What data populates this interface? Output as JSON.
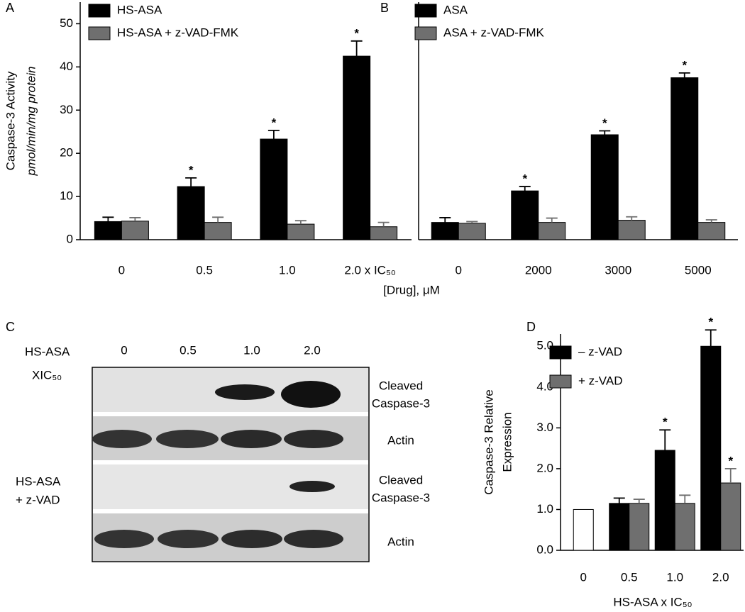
{
  "chart_data": [
    {
      "type": "bar",
      "panel": "A",
      "ylabel": [
        "Caspase-3 Activity",
        "pmol/min/mg protein"
      ],
      "xlabel": "[Drug], μM",
      "categories": [
        "0",
        "0.5",
        "1.0",
        "2.0 x IC₅₀"
      ],
      "ylim": [
        0,
        55
      ],
      "yticks": [
        0,
        10,
        20,
        30,
        40,
        50
      ],
      "series": [
        {
          "name": "HS-ASA",
          "color": "#000000",
          "values": [
            4.2,
            12.3,
            23.3,
            42.5
          ],
          "errors": [
            1.0,
            2.0,
            2.0,
            3.5
          ],
          "markers": [
            null,
            "*",
            "*",
            "*"
          ]
        },
        {
          "name": "HS-ASA + z-VAD-FMK",
          "color": "#6f6f6f",
          "values": [
            4.3,
            4.0,
            3.6,
            3.0
          ],
          "errors": [
            0.8,
            1.2,
            0.8,
            1.0
          ],
          "markers": [
            null,
            null,
            null,
            null
          ]
        }
      ]
    },
    {
      "type": "bar",
      "panel": "B",
      "categories": [
        "0",
        "2000",
        "3000",
        "5000"
      ],
      "ylim": [
        0,
        55
      ],
      "series": [
        {
          "name": "ASA",
          "color": "#000000",
          "values": [
            4.0,
            11.3,
            24.3,
            37.5
          ],
          "errors": [
            1.1,
            1.0,
            0.9,
            1.1
          ],
          "markers": [
            null,
            "*",
            "*",
            "*"
          ]
        },
        {
          "name": "ASA + z-VAD-FMK",
          "color": "#6f6f6f",
          "values": [
            3.8,
            4.0,
            4.5,
            4.0
          ],
          "errors": [
            0.4,
            1.0,
            0.8,
            0.6
          ],
          "markers": [
            null,
            null,
            null,
            null
          ]
        }
      ]
    },
    {
      "type": "bar",
      "panel": "D",
      "ylabel": [
        "Caspase-3 Relative",
        "Expression"
      ],
      "xlabel": "HS-ASA x IC₅₀",
      "categories": [
        "0",
        "0.5",
        "1.0",
        "2.0"
      ],
      "ylim": [
        0,
        5.3
      ],
      "yticks": [
        {
          "value": 0,
          "label": "0.0"
        },
        {
          "value": 1,
          "label": "1.0"
        },
        {
          "value": 2,
          "label": "2.0"
        },
        {
          "value": 3,
          "label": "3.0"
        },
        {
          "value": 4,
          "label": "4.0"
        },
        {
          "value": 5,
          "label": "5.0"
        }
      ],
      "series": [
        {
          "color": "#ffffff",
          "values": [
            1.0,
            null,
            null,
            null
          ],
          "errors": [
            null,
            null,
            null,
            null
          ],
          "markers": [
            null,
            null,
            null,
            null
          ]
        },
        {
          "name": "– z-VAD",
          "color": "#000000",
          "values": [
            null,
            1.15,
            2.45,
            5.0
          ],
          "errors": [
            null,
            0.13,
            0.5,
            0.4
          ],
          "markers": [
            null,
            null,
            "*",
            "*"
          ]
        },
        {
          "name": "+ z-VAD",
          "color": "#6f6f6f",
          "values": [
            null,
            1.15,
            1.15,
            1.65
          ],
          "errors": [
            null,
            0.1,
            0.2,
            0.35
          ],
          "markers": [
            null,
            null,
            null,
            "*"
          ]
        }
      ]
    }
  ],
  "panel_c": {
    "label": "C",
    "treatment": [
      "HS-ASA",
      "XIC₅₀"
    ],
    "lanes": [
      "0",
      "0.5",
      "1.0",
      "2.0"
    ],
    "rows": [
      [
        "Cleaved",
        "Caspase-3"
      ],
      [
        "Actin"
      ],
      [
        "Cleaved",
        "Caspase-3"
      ],
      [
        "Actin"
      ]
    ],
    "treatment2": [
      "HS-ASA",
      "+ z-VAD"
    ]
  }
}
